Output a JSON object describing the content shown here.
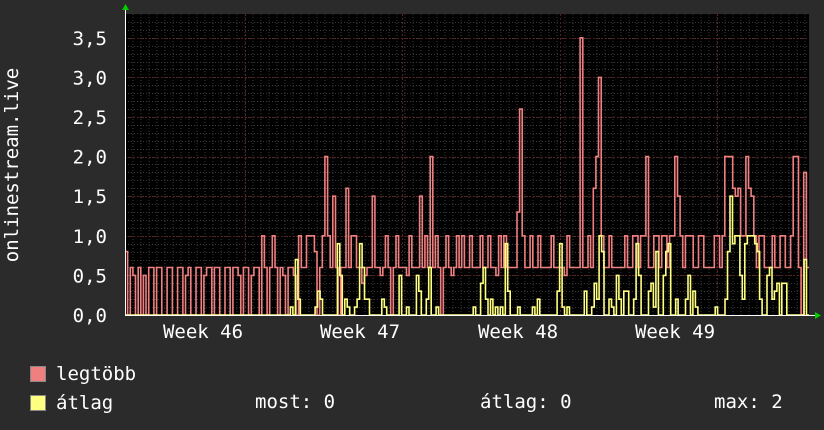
{
  "colors": {
    "background": "#2b2b2b",
    "plot_background": "#000000",
    "grid_major": "#5a1e1e",
    "grid_minor": "#3a3a3a",
    "max_series": "#f08080",
    "avg_series": "#ffff80",
    "axis_arrow": "#00cc00"
  },
  "chart_data": {
    "type": "line",
    "ylabel": "onlinestream.live",
    "ylim": [
      0,
      3.8
    ],
    "y_ticks": [
      "0,0",
      "0,5",
      "1,0",
      "1,5",
      "2,0",
      "2,5",
      "3,0",
      "3,5"
    ],
    "y_tick_values": [
      0,
      0.5,
      1.0,
      1.5,
      2.0,
      2.5,
      3.0,
      3.5
    ],
    "x_ticks": [
      "Week  46",
      "Week  47",
      "Week  48",
      "Week  49"
    ],
    "grid": true,
    "series": [
      {
        "name": "legtöbb",
        "values": [
          0.8,
          0,
          0.6,
          0.5,
          0,
          0.6,
          0,
          0.5,
          0,
          0.6,
          0.6,
          0,
          0.6,
          0.6,
          0,
          0,
          0.6,
          0.6,
          0,
          0,
          0.6,
          0.6,
          0,
          0.5,
          0.6,
          0,
          0,
          0.6,
          0.6,
          0,
          0.5,
          0.6,
          0.6,
          0,
          0.6,
          0.6,
          0,
          0,
          0.6,
          0.6,
          0,
          0.6,
          0.6,
          0.5,
          0,
          0.6,
          0.6,
          0,
          0.5,
          0.6,
          0.6,
          0,
          1.0,
          0.6,
          0,
          0.6,
          1.0,
          0.6,
          0,
          0.6,
          0.5,
          0,
          0.6,
          0.6,
          0.5,
          0,
          1.0,
          0.6,
          0.6,
          1.0,
          1.0,
          1.0,
          0.8,
          0,
          0.6,
          1.0,
          2.0,
          1.0,
          0.6,
          1.5,
          0.6,
          0,
          0.6,
          0.6,
          1.6,
          0.6,
          1.0,
          1.0,
          0.6,
          0.6,
          0.4,
          0.5,
          0.6,
          0.6,
          1.5,
          0.6,
          0.6,
          0.5,
          0.6,
          1.0,
          0.6,
          0,
          0.6,
          1.0,
          0.6,
          0.6,
          0.6,
          0.5,
          1.0,
          0.6,
          0.6,
          0.6,
          1.5,
          0.6,
          1.0,
          0.6,
          2.0,
          0.6,
          1.0,
          0.6,
          0,
          0.6,
          1.0,
          0.6,
          0.5,
          0.6,
          1.0,
          0.6,
          1.0,
          0.6,
          0.6,
          1.0,
          0.6,
          0.6,
          0.6,
          1.0,
          0.6,
          0.6,
          1.0,
          0.6,
          0.6,
          0.5,
          1.0,
          0.6,
          1.0,
          0.6,
          0.6,
          0.6,
          0.6,
          1.3,
          2.6,
          1.0,
          0.6,
          0.6,
          1.0,
          0.6,
          0.6,
          1.0,
          0.6,
          0.6,
          0.6,
          0.6,
          1.0,
          0.6,
          0.6,
          0.6,
          0.6,
          0.5,
          1.0,
          0.6,
          0.6,
          0.6,
          0.6,
          3.5,
          0.6,
          0.6,
          1.0,
          0.6,
          1.6,
          2.0,
          3.0,
          1.0,
          0.6,
          0.6,
          1.0,
          0.6,
          0.6,
          0.6,
          0.6,
          0.6,
          1.0,
          0.6,
          0.6,
          1.0,
          1.0,
          0.6,
          1.0,
          1.0,
          2.0,
          0.6,
          0.6,
          1.0,
          1.0,
          0.6,
          1.0,
          1.0,
          0.6,
          1.0,
          1.0,
          2.0,
          1.5,
          1.0,
          0.6,
          1.0,
          1.0,
          1.0,
          0.6,
          0.6,
          1.0,
          1.0,
          0.6,
          0.6,
          0.6,
          0.6,
          1.0,
          1.0,
          0.6,
          1.0,
          2.0,
          2.0,
          2.0,
          1.6,
          1.5,
          1.6,
          1.0,
          1.0,
          2.0,
          1.6,
          1.5,
          1.0,
          0.6,
          1.0,
          1.0,
          0.6,
          0.6,
          0.6,
          1.0,
          0.6,
          0.6,
          1.0,
          1.0,
          0.6,
          0.6,
          1.0,
          2.0,
          2.0,
          0.6,
          0,
          1.8,
          0.6
        ],
        "color": "#f08080"
      },
      {
        "name": "átlag",
        "values": [
          0,
          0,
          0,
          0,
          0,
          0,
          0,
          0,
          0,
          0,
          0,
          0,
          0,
          0,
          0,
          0,
          0,
          0,
          0,
          0,
          0,
          0,
          0,
          0,
          0,
          0,
          0,
          0,
          0,
          0,
          0,
          0,
          0,
          0,
          0,
          0,
          0,
          0,
          0,
          0,
          0,
          0,
          0,
          0,
          0,
          0,
          0,
          0,
          0,
          0,
          0,
          0,
          0,
          0,
          0,
          0,
          0,
          0,
          0,
          0,
          0,
          0,
          0,
          0,
          0,
          0,
          0,
          0.1,
          0,
          0.7,
          0.2,
          0,
          0,
          0,
          0,
          0,
          0,
          0.1,
          0.3,
          0.2,
          0,
          0,
          0,
          0,
          0,
          0,
          0.9,
          0.5,
          0,
          0.2,
          0.1,
          0,
          0,
          0.1,
          0.2,
          0.9,
          0.6,
          0.2,
          0.2,
          0,
          0,
          0,
          0,
          0,
          0.2,
          0.1,
          0,
          0,
          0,
          0,
          0,
          0.5,
          0,
          0,
          0.1,
          0,
          0,
          0,
          0.5,
          0.3,
          0,
          0,
          0.2,
          0.6,
          0,
          0,
          0.1,
          0,
          0,
          0,
          0,
          0,
          0,
          0,
          0,
          0,
          0,
          0,
          0,
          0,
          0,
          0.1,
          0,
          0,
          0.4,
          0.6,
          0.2,
          0,
          0.2,
          0,
          0.1,
          0,
          0.1,
          0,
          0.9,
          0.3,
          0,
          0,
          0,
          0.1,
          0,
          0,
          0,
          0,
          0,
          0.1,
          0,
          0.2,
          0,
          0,
          0,
          0,
          0,
          0,
          0,
          0.3,
          0.9,
          0.1,
          0,
          0.1,
          0,
          0,
          0,
          0,
          0,
          0,
          0.3,
          0,
          0,
          0.1,
          0.4,
          0.2,
          1.0,
          0.8,
          0,
          0,
          0.2,
          0.1,
          0,
          0.5,
          0.2,
          0,
          0.3,
          0.3,
          0,
          0,
          0.2,
          0.9,
          0.5,
          0,
          0,
          0,
          0.3,
          0.4,
          0.1,
          0.8,
          0,
          0,
          0.5,
          0.8,
          0.9,
          0,
          0,
          0.2,
          0,
          0,
          0,
          0.2,
          0.5,
          0,
          0.3,
          0.1,
          0,
          0,
          0,
          0,
          0,
          0,
          0,
          0.1,
          0,
          0,
          0,
          0.2,
          0.8,
          1.5,
          0.9,
          1.0,
          1.0,
          0.5,
          0.2,
          0.9,
          1.0,
          1.0,
          1.0,
          0.9,
          0.8,
          0.2,
          0,
          0,
          0.5,
          0.6,
          0.2,
          0.3,
          0.4,
          0,
          0.4,
          0.4,
          0,
          0,
          0,
          0,
          0,
          0,
          0,
          0.7,
          0
        ],
        "color": "#ffff80"
      }
    ]
  },
  "legend": [
    {
      "label": "legtöbb",
      "color": "#f08080"
    },
    {
      "label": "átlag",
      "color": "#ffff80"
    }
  ],
  "stats": {
    "current": "most: 0",
    "average": "átlag: 0",
    "max": "max: 2"
  }
}
